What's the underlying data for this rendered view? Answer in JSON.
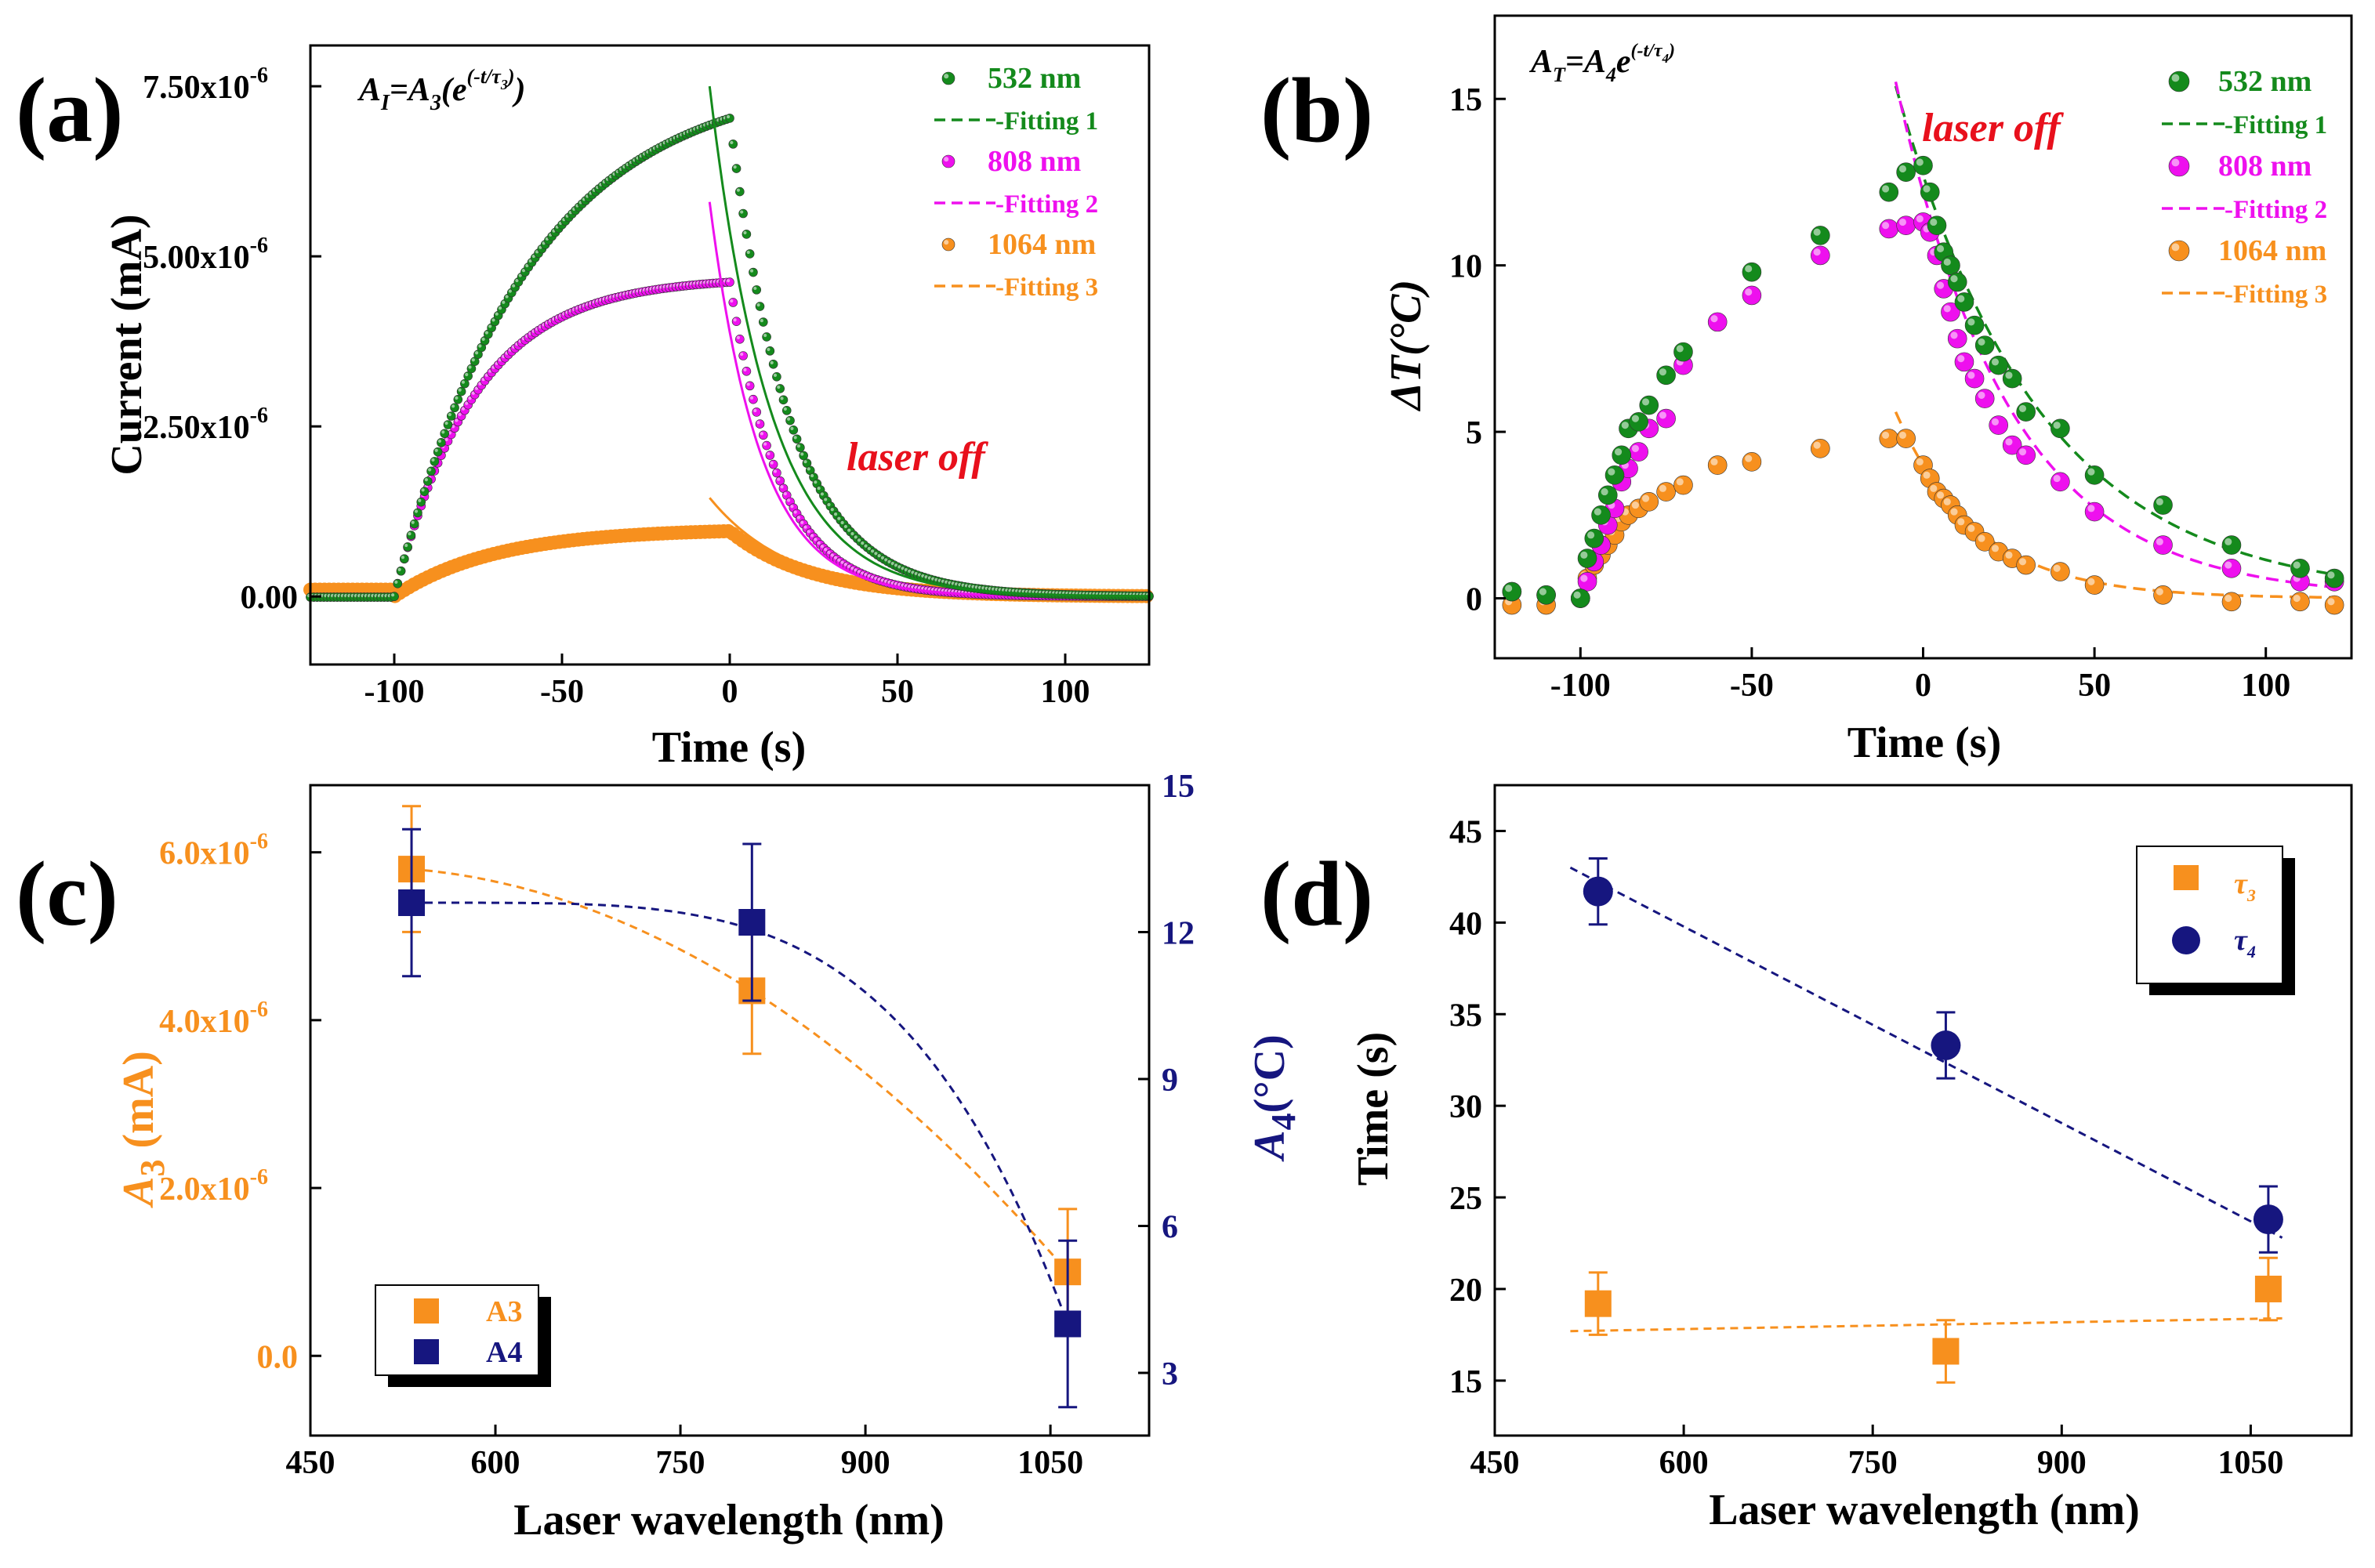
{
  "colors": {
    "c532": "#148a1c",
    "c808": "#ee10ee",
    "c1064": "#f7901e",
    "orange": "#f7901e",
    "navy": "#16167f",
    "red": "#e8101c",
    "black": "#000000"
  },
  "chart_data": [
    {
      "panel": "(a)",
      "type": "scatter",
      "formula": "A_I=A_3(e^(-t/τ_3))",
      "annotation": "laser off",
      "xlabel": "Time (s)",
      "ylabel": "Current (mA)",
      "xlim": [
        -125,
        125
      ],
      "ylim": [
        -1e-06,
        8.1e-06
      ],
      "xticks": [
        -100,
        -50,
        0,
        50,
        100
      ],
      "xtick_labels": [
        "-100",
        "-50",
        "0",
        "50",
        "100"
      ],
      "yticks": [
        0,
        2.5e-06,
        5e-06,
        7.5e-06
      ],
      "ytick_labels": [
        "0.00",
        "2.50x10",
        "5.00x10",
        "7.50x10"
      ],
      "ytick_exps": [
        "",
        "-6",
        "-6",
        "-6"
      ],
      "legend": [
        "532 nm",
        "Fitting 1",
        "808 nm",
        "Fitting 2",
        "1064 nm",
        "Fitting 3"
      ],
      "series": [
        {
          "name": "532 nm",
          "peak": 7.03e-06,
          "rise_tau": 40,
          "decay_tau": 18,
          "fit_A": 7.5e-06
        },
        {
          "name": "808 nm",
          "peak": 4.62e-06,
          "rise_tau": 24,
          "decay_tau": 15,
          "fit_A": 5.8e-06
        },
        {
          "name": "1064 nm",
          "peak": 9.6e-07,
          "rise_tau": 30,
          "decay_tau": 24,
          "fit_A": 1.45e-06
        }
      ]
    },
    {
      "panel": "(b)",
      "type": "scatter",
      "formula": "A_T=A_4 e^(-t/τ_4)",
      "annotation": "laser off",
      "xlabel": "Time (s)",
      "ylabel": "ΔT(°C)",
      "xlim": [
        -125,
        125
      ],
      "ylim": [
        -1.8,
        17.5
      ],
      "xticks": [
        -100,
        -50,
        0,
        50,
        100
      ],
      "xtick_labels": [
        "-100",
        "-50",
        "0",
        "50",
        "100"
      ],
      "yticks": [
        0,
        5,
        10,
        15
      ],
      "ytick_labels": [
        "0",
        "5",
        "10",
        "15"
      ],
      "legend": [
        "532 nm",
        "Fitting 1",
        "808 nm",
        "Fitting 2",
        "1064 nm",
        "Fitting 3"
      ],
      "series": [
        {
          "name": "532 nm",
          "fit": {
            "A": 12.7,
            "tau": 41.7
          },
          "x": [
            -120,
            -110,
            -100,
            -98,
            -96,
            -94,
            -92,
            -90,
            -88,
            -86,
            -83,
            -80,
            -75,
            -70,
            -50,
            -30,
            -10,
            -5,
            0,
            2,
            4,
            6,
            8,
            10,
            12,
            15,
            18,
            22,
            26,
            30,
            40,
            50,
            70,
            90,
            110,
            120
          ],
          "y": [
            0.2,
            0.1,
            0,
            1.2,
            1.8,
            2.5,
            3.1,
            3.7,
            4.3,
            5.1,
            5.3,
            5.8,
            6.7,
            7.4,
            9.8,
            10.9,
            12.2,
            12.8,
            13.0,
            12.2,
            11.2,
            10.4,
            10.0,
            9.5,
            8.9,
            8.2,
            7.6,
            7.0,
            6.6,
            5.6,
            5.1,
            3.7,
            2.8,
            1.6,
            0.9,
            0.6
          ]
        },
        {
          "name": "808 nm",
          "fit": {
            "A": 12.2,
            "tau": 33.3
          },
          "x": [
            -120,
            -110,
            -100,
            -98,
            -96,
            -94,
            -92,
            -90,
            -88,
            -86,
            -83,
            -80,
            -75,
            -70,
            -60,
            -50,
            -30,
            -10,
            -5,
            0,
            2,
            4,
            6,
            8,
            10,
            12,
            15,
            18,
            22,
            26,
            30,
            40,
            50,
            70,
            90,
            110,
            120
          ],
          "y": [
            0.2,
            0.1,
            0,
            0.5,
            1.1,
            1.6,
            2.2,
            2.7,
            3.5,
            3.9,
            4.4,
            5.1,
            5.4,
            7.0,
            8.3,
            9.1,
            10.3,
            11.1,
            11.2,
            11.3,
            11.0,
            10.3,
            9.3,
            8.6,
            7.8,
            7.1,
            6.6,
            6.0,
            5.2,
            4.6,
            4.3,
            3.5,
            2.6,
            1.6,
            0.9,
            0.5,
            0.5
          ]
        },
        {
          "name": "1064 nm",
          "fit": {
            "A": 4.0,
            "tau": 23.8
          },
          "x": [
            -120,
            -110,
            -100,
            -98,
            -96,
            -94,
            -92,
            -90,
            -88,
            -86,
            -83,
            -80,
            -75,
            -70,
            -60,
            -50,
            -30,
            -10,
            -5,
            0,
            2,
            4,
            6,
            8,
            10,
            12,
            15,
            18,
            22,
            26,
            30,
            40,
            50,
            70,
            90,
            110,
            120
          ],
          "y": [
            -0.2,
            -0.2,
            0,
            0.6,
            1.0,
            1.3,
            1.6,
            1.9,
            2.3,
            2.5,
            2.7,
            2.9,
            3.2,
            3.4,
            4.0,
            4.1,
            4.5,
            4.8,
            4.8,
            4.0,
            3.6,
            3.2,
            3.0,
            2.8,
            2.5,
            2.2,
            2.0,
            1.7,
            1.4,
            1.2,
            1.0,
            0.8,
            0.4,
            0.1,
            -0.1,
            -0.1,
            -0.2
          ]
        }
      ]
    },
    {
      "panel": "(c)",
      "type": "scatter",
      "xlabel": "Laser wavelength (nm)",
      "ylabel_left": "A_3 (mA)",
      "ylabel_right": "A_4(°C)",
      "xlim": [
        450,
        1130
      ],
      "ylim_left": [
        -9.5e-07,
        6.8e-06
      ],
      "ylim_right": [
        1.72,
        15.0
      ],
      "xticks": [
        450,
        600,
        750,
        900,
        1050
      ],
      "xtick_labels": [
        "450",
        "600",
        "750",
        "900",
        "1050"
      ],
      "yticks_left": [
        0,
        2e-06,
        4e-06,
        6e-06
      ],
      "ytick_labels_left": [
        "0.0",
        "2.0x10",
        "4.0x10",
        "6.0x10"
      ],
      "ytick_exps_left": [
        "",
        "-6",
        "-6",
        "-6"
      ],
      "yticks_right": [
        3,
        6,
        9,
        12,
        15
      ],
      "ytick_labels_right": [
        "3",
        "6",
        "9",
        "12",
        "15"
      ],
      "legend": [
        "A3",
        "A4"
      ],
      "series": [
        {
          "name": "A3",
          "axis": "left",
          "x": [
            532,
            808,
            1064
          ],
          "y": [
            5.8e-06,
            4.35e-06,
            1e-06
          ],
          "err": [
            7.5e-07,
            7.5e-07,
            7.5e-07
          ]
        },
        {
          "name": "A4",
          "axis": "right",
          "x": [
            532,
            808,
            1064
          ],
          "y": [
            12.6,
            12.2,
            4.0
          ],
          "err": [
            1.5,
            1.6,
            1.7
          ]
        }
      ]
    },
    {
      "panel": "(d)",
      "type": "scatter",
      "xlabel": "Laser wavelength (nm)",
      "ylabel": "Time (s)",
      "xlim": [
        450,
        1130
      ],
      "ylim": [
        12.0,
        47.5
      ],
      "xticks": [
        450,
        600,
        750,
        900,
        1050
      ],
      "xtick_labels": [
        "450",
        "600",
        "750",
        "900",
        "1050"
      ],
      "yticks": [
        15,
        20,
        25,
        30,
        35,
        40,
        45
      ],
      "ytick_labels": [
        "15",
        "20",
        "25",
        "30",
        "35",
        "40",
        "45"
      ],
      "legend": [
        "τ_3",
        "τ_4"
      ],
      "series": [
        {
          "name": "τ3",
          "x": [
            532,
            808,
            1064
          ],
          "y": [
            19.2,
            16.6,
            20.0
          ],
          "err": [
            1.7,
            1.7,
            1.7
          ],
          "fit_x": [
            510,
            1075
          ],
          "fit_y": [
            17.7,
            18.4
          ]
        },
        {
          "name": "τ4",
          "x": [
            532,
            808,
            1064
          ],
          "y": [
            41.7,
            33.3,
            23.8
          ],
          "err": [
            1.8,
            1.8,
            1.8
          ],
          "fit_x": [
            510,
            1075
          ],
          "fit_y": [
            43.0,
            22.8
          ]
        }
      ]
    }
  ]
}
